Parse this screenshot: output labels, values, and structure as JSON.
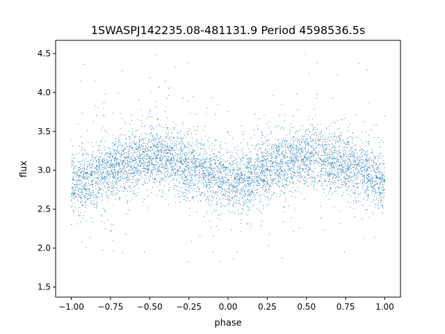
{
  "chart_data": {
    "type": "scatter",
    "title": "1SWASPJ142235.08-481131.9 Period 4598536.5s",
    "xlabel": "phase",
    "ylabel": "flux",
    "xlim": [
      -1.1,
      1.1
    ],
    "ylim": [
      1.37,
      4.67
    ],
    "xticks": [
      -1.0,
      -0.75,
      -0.5,
      -0.25,
      0.0,
      0.25,
      0.5,
      0.75,
      1.0
    ],
    "xtick_labels": [
      "−1.00",
      "−0.75",
      "−0.50",
      "−0.25",
      "0.00",
      "0.25",
      "0.50",
      "0.75",
      "1.00"
    ],
    "yticks": [
      1.5,
      2.0,
      2.5,
      3.0,
      3.5,
      4.0,
      4.5
    ],
    "ytick_labels": [
      "1.5",
      "2.0",
      "2.5",
      "3.0",
      "3.5",
      "4.0",
      "4.5"
    ],
    "grid": false,
    "marker_color": "#1f77b4",
    "x_range": [
      -1.0,
      1.0
    ],
    "series": [
      {
        "description_profile_phase": [
          -1.0,
          -0.9,
          -0.8,
          -0.7,
          -0.6,
          -0.5,
          -0.4,
          -0.3,
          -0.2,
          -0.1,
          0.0,
          0.1,
          0.2,
          0.3,
          0.4,
          0.5,
          0.6,
          0.7,
          0.8,
          0.9,
          1.0
        ],
        "mean_flux": [
          2.85,
          2.88,
          2.95,
          3.05,
          3.12,
          3.18,
          3.15,
          3.1,
          3.02,
          2.95,
          2.85,
          2.88,
          2.95,
          3.05,
          3.12,
          3.18,
          3.15,
          3.1,
          3.02,
          2.95,
          2.85
        ]
      }
    ]
  }
}
